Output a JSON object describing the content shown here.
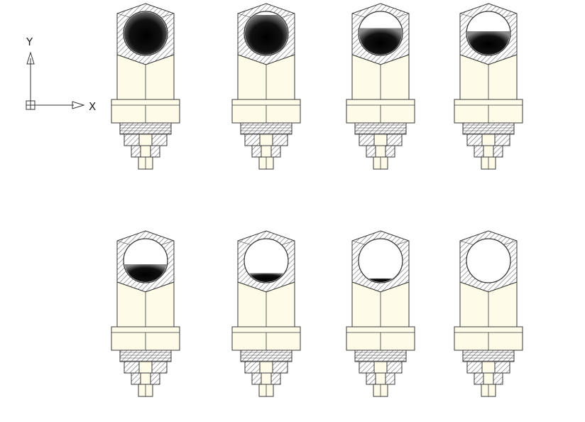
{
  "axes_indicator": {
    "y_label": "Y",
    "x_label": "X"
  },
  "colors": {
    "body_fill": "#fffbe9",
    "outline": "#3a3a3a",
    "hatch": "#6a6a6a",
    "fluid_dark": "#000000",
    "fluid_light": "#8a8a8a"
  },
  "fittings": [
    {
      "row": 1,
      "col": 1,
      "fill_level": 1.0
    },
    {
      "row": 1,
      "col": 2,
      "fill_level": 0.92
    },
    {
      "row": 1,
      "col": 3,
      "fill_level": 0.62
    },
    {
      "row": 1,
      "col": 4,
      "fill_level": 0.55
    },
    {
      "row": 2,
      "col": 1,
      "fill_level": 0.42
    },
    {
      "row": 2,
      "col": 2,
      "fill_level": 0.22
    },
    {
      "row": 2,
      "col": 3,
      "fill_level": 0.1
    },
    {
      "row": 2,
      "col": 4,
      "fill_level": 0.0
    }
  ]
}
